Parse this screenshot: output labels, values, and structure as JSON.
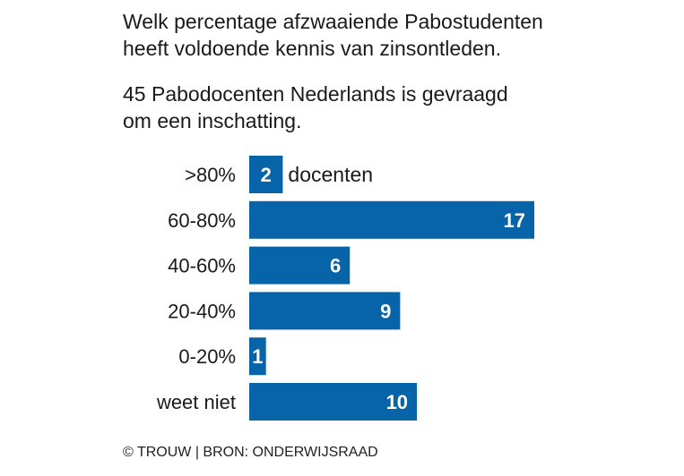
{
  "chart_data": {
    "type": "bar",
    "orientation": "horizontal",
    "title": "Welk percentage afzwaaiende Pabostudenten heeft voldoende kennis van zinsontleden.",
    "subtitle": "45 Pabodocenten Nederlands is gevraagd om een inschatting.",
    "categories": [
      ">80%",
      "60-80%",
      "40-60%",
      "20-40%",
      "0-20%",
      "weet niet"
    ],
    "values": [
      2,
      17,
      6,
      9,
      1,
      10
    ],
    "unit_label": "docenten",
    "bar_color": "#0864a8",
    "grid": false,
    "xlim": [
      0,
      17
    ]
  },
  "title_lines": [
    "Welk percentage afzwaaiende Pabostudenten",
    "heeft voldoende kennis van zinsontleden."
  ],
  "subtitle_lines": [
    "45 Pabodocenten Nederlands is gevraagd",
    "om een inschatting."
  ],
  "footer": "© TROUW | BRON: ONDERWIJSRAAD"
}
